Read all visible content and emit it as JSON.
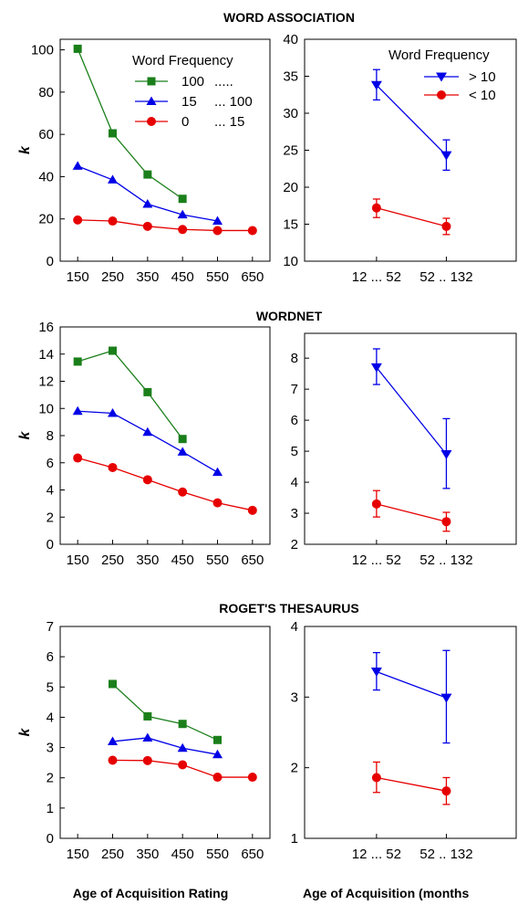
{
  "figure": {
    "xlabel_left": "Age of Acquisition Rating",
    "xlabel_right": "Age of Acquisition (months"
  },
  "colors": {
    "green": "#1a7f1a",
    "blue": "#0000e6",
    "red": "#e60000",
    "axis": "#000000"
  },
  "chart_data": [
    {
      "id": "wa_left",
      "type": "line",
      "title": "WORD ASSOCIATION",
      "ylabel": "k",
      "xticks": [
        150,
        250,
        350,
        450,
        550,
        650
      ],
      "xlim": [
        100,
        700
      ],
      "yticks": [
        0,
        20,
        40,
        60,
        80,
        100
      ],
      "ylim": [
        0,
        105
      ],
      "legend": {
        "title": "Word Frequency",
        "position": "top-right",
        "entries": [
          {
            "series": 0,
            "label1": "100",
            "label2": "....."
          },
          {
            "series": 1,
            "label1": "15",
            "label2": "... 100"
          },
          {
            "series": 2,
            "label1": "0",
            "label2": "... 15"
          }
        ]
      },
      "series": [
        {
          "color": "green",
          "marker": "square",
          "x": [
            150,
            250,
            350,
            450
          ],
          "y": [
            100.5,
            60.5,
            41,
            29.5
          ]
        },
        {
          "color": "blue",
          "marker": "triangle-up",
          "x": [
            150,
            250,
            350,
            450,
            550
          ],
          "y": [
            45,
            38.5,
            27,
            22,
            19
          ]
        },
        {
          "color": "red",
          "marker": "circle",
          "x": [
            150,
            250,
            350,
            450,
            550,
            650
          ],
          "y": [
            19.5,
            19,
            16.5,
            15,
            14.5,
            14.5
          ]
        }
      ]
    },
    {
      "id": "wa_right",
      "type": "line",
      "ylabel": "",
      "categories": [
        "12 ... 52",
        "52 .. 132"
      ],
      "yticks": [
        10,
        15,
        20,
        25,
        30,
        35,
        40
      ],
      "ylim": [
        10,
        40
      ],
      "legend": {
        "title": "Word Frequency",
        "position": "top-right",
        "entries": [
          {
            "series": 0,
            "label1": "> 10",
            "label2": ""
          },
          {
            "series": 1,
            "label1": "< 10",
            "label2": ""
          }
        ]
      },
      "series": [
        {
          "color": "blue",
          "marker": "triangle-down",
          "y": [
            33.8,
            24.3
          ],
          "err_low": [
            31.8,
            22.3
          ],
          "err_high": [
            35.9,
            26.4
          ]
        },
        {
          "color": "red",
          "marker": "circle",
          "y": [
            17.2,
            14.7
          ],
          "err_low": [
            15.9,
            13.6
          ],
          "err_high": [
            18.4,
            15.8
          ]
        }
      ]
    },
    {
      "id": "wn_left",
      "type": "line",
      "title": "WORDNET",
      "ylabel": "k",
      "xticks": [
        150,
        250,
        350,
        450,
        550,
        650
      ],
      "xlim": [
        100,
        700
      ],
      "yticks": [
        0,
        2,
        4,
        6,
        8,
        10,
        12,
        14,
        16
      ],
      "ylim": [
        0,
        16
      ],
      "series": [
        {
          "color": "green",
          "marker": "square",
          "x": [
            150,
            250,
            350,
            450
          ],
          "y": [
            13.45,
            14.25,
            11.2,
            7.75
          ]
        },
        {
          "color": "blue",
          "marker": "triangle-up",
          "x": [
            150,
            250,
            350,
            450,
            550
          ],
          "y": [
            9.8,
            9.65,
            8.25,
            6.8,
            5.3
          ]
        },
        {
          "color": "red",
          "marker": "circle",
          "x": [
            150,
            250,
            350,
            450,
            550,
            650
          ],
          "y": [
            6.35,
            5.65,
            4.75,
            3.85,
            3.05,
            2.5
          ]
        }
      ]
    },
    {
      "id": "wn_right",
      "type": "line",
      "ylabel": "",
      "categories": [
        "12 ... 52",
        "52 .. 132"
      ],
      "yticks": [
        2,
        3,
        4,
        5,
        6,
        7,
        8
      ],
      "ylim": [
        2,
        8.8
      ],
      "series": [
        {
          "color": "blue",
          "marker": "triangle-down",
          "y": [
            7.7,
            4.9
          ],
          "err_low": [
            7.15,
            3.8
          ],
          "err_high": [
            8.3,
            6.05
          ]
        },
        {
          "color": "red",
          "marker": "circle",
          "y": [
            3.3,
            2.73
          ],
          "err_low": [
            2.88,
            2.42
          ],
          "err_high": [
            3.73,
            3.03
          ]
        }
      ]
    },
    {
      "id": "rt_left",
      "type": "line",
      "title": "ROGET'S THESAURUS",
      "ylabel": "k",
      "xticks": [
        150,
        250,
        350,
        450,
        550,
        650
      ],
      "xlim": [
        100,
        700
      ],
      "yticks": [
        0,
        1,
        2,
        3,
        4,
        5,
        6,
        7
      ],
      "ylim": [
        0,
        7
      ],
      "series": [
        {
          "color": "green",
          "marker": "square",
          "x": [
            250,
            350,
            450,
            550
          ],
          "y": [
            5.1,
            4.03,
            3.78,
            3.25
          ]
        },
        {
          "color": "blue",
          "marker": "triangle-up",
          "x": [
            250,
            350,
            450,
            550
          ],
          "y": [
            3.2,
            3.32,
            2.98,
            2.77
          ]
        },
        {
          "color": "red",
          "marker": "circle",
          "x": [
            250,
            350,
            450,
            550,
            650
          ],
          "y": [
            2.58,
            2.57,
            2.43,
            2.02,
            2.02
          ]
        }
      ]
    },
    {
      "id": "rt_right",
      "type": "line",
      "ylabel": "",
      "categories": [
        "12 ... 52",
        "52 .. 132"
      ],
      "yticks": [
        1,
        2,
        3,
        4
      ],
      "ylim": [
        1,
        4
      ],
      "series": [
        {
          "color": "blue",
          "marker": "triangle-down",
          "y": [
            3.36,
            2.99
          ],
          "err_low": [
            3.1,
            2.35
          ],
          "err_high": [
            3.63,
            3.66
          ]
        },
        {
          "color": "red",
          "marker": "circle",
          "y": [
            1.86,
            1.67
          ],
          "err_low": [
            1.65,
            1.48
          ],
          "err_high": [
            2.08,
            1.86
          ]
        }
      ]
    }
  ]
}
